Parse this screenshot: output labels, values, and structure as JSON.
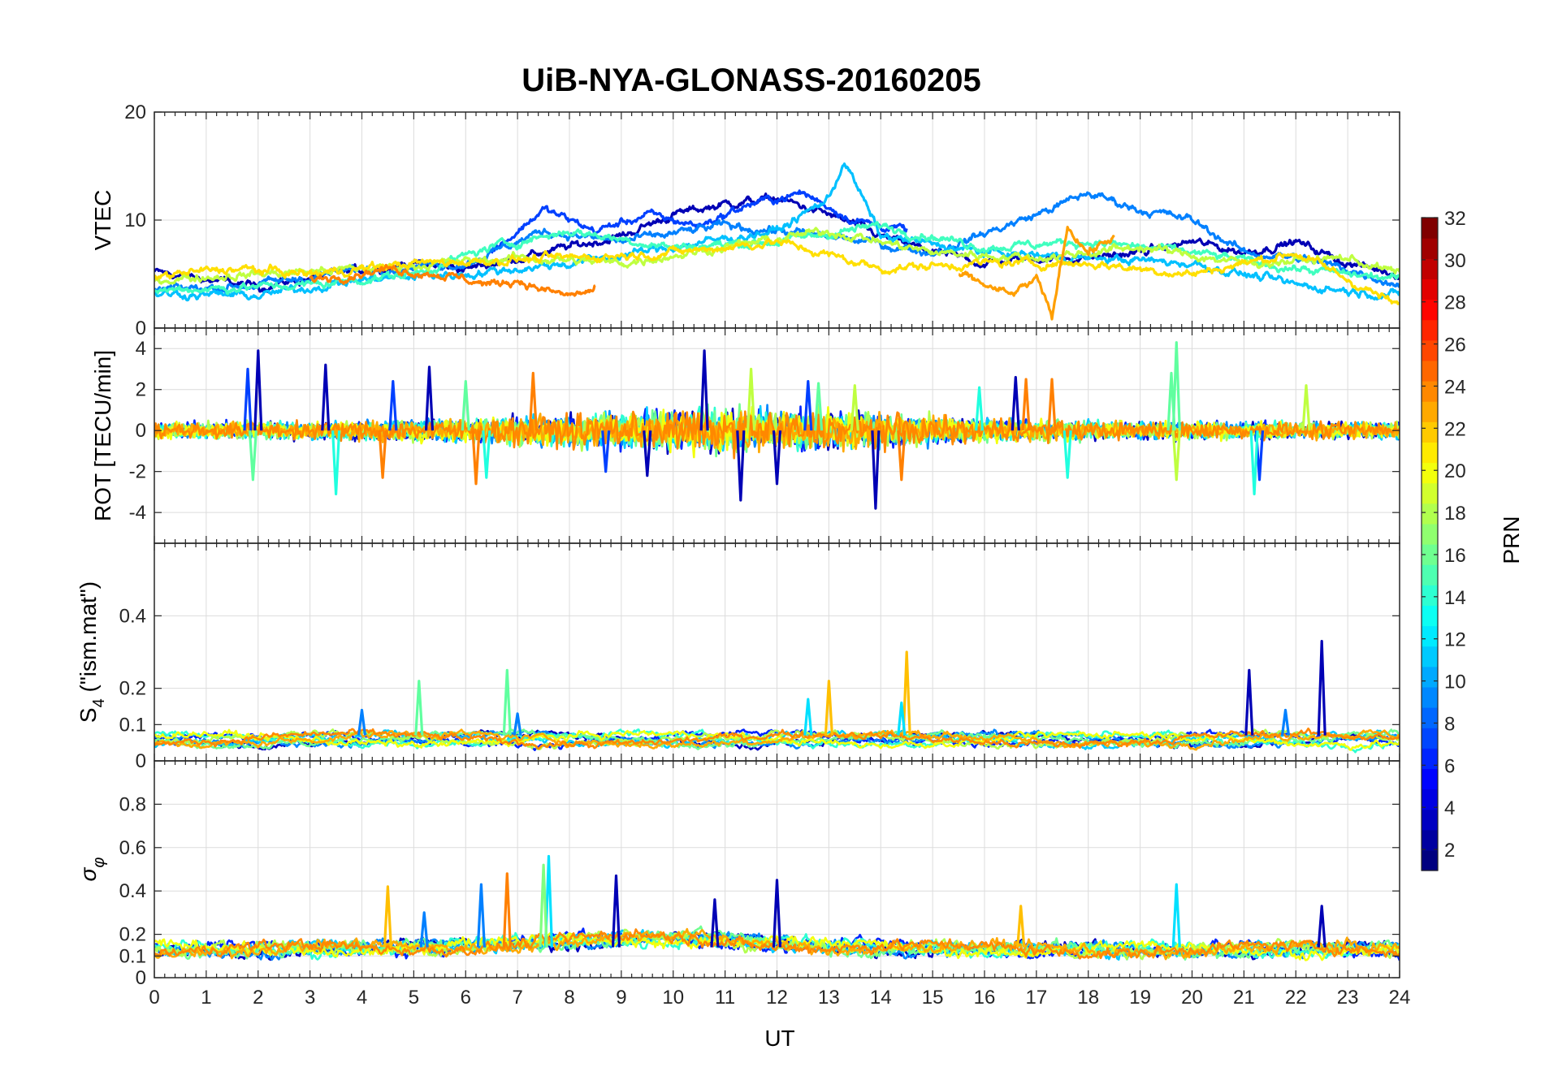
{
  "chart_data": {
    "type": "line",
    "title": "UiB-NYA-GLONASS-20160205",
    "xlabel": "UT",
    "xlim": [
      0,
      24
    ],
    "xticks": [
      "0",
      "1",
      "2",
      "3",
      "4",
      "5",
      "6",
      "7",
      "8",
      "9",
      "10",
      "11",
      "12",
      "13",
      "14",
      "15",
      "16",
      "17",
      "18",
      "19",
      "20",
      "21",
      "22",
      "23",
      "24"
    ],
    "colorbar": {
      "label": "PRN",
      "range": [
        1,
        32
      ],
      "ticks": [
        "2",
        "4",
        "6",
        "8",
        "10",
        "12",
        "14",
        "16",
        "18",
        "20",
        "22",
        "24",
        "26",
        "28",
        "30",
        "32"
      ],
      "colormap": "jet",
      "levels": 32
    },
    "panels": [
      {
        "name": "vtec",
        "ylabel": "VTEC",
        "ylim": [
          0,
          20
        ],
        "yticks": [
          "0",
          "10",
          "20"
        ],
        "series": [
          {
            "prn": 2,
            "color": "#0000B5",
            "x": [
              0,
              1,
              2,
              3,
              4,
              5,
              6,
              7,
              8,
              9,
              10,
              11,
              12,
              13,
              14,
              15,
              16,
              17,
              18,
              19,
              20,
              21,
              22,
              23,
              24
            ],
            "y": [
              5.2,
              4.5,
              3.8,
              4.6,
              5.4,
              6.0,
              5.5,
              6.5,
              7.5,
              8.5,
              10.5,
              11.5,
              12.0,
              10.5,
              8.5,
              7.0,
              6.0,
              6.5,
              6.5,
              7.0,
              8.0,
              7.0,
              8.0,
              6.0,
              5.0
            ]
          },
          {
            "prn": 6,
            "color": "#0040FF",
            "x": [
              6.5,
              7.5,
              8.5,
              9.5,
              10.5,
              11.5,
              12.5,
              13.5,
              14.5
            ],
            "y": [
              7.0,
              11.0,
              9.0,
              10.5,
              9.5,
              11.5,
              12.5,
              10.0,
              9.0
            ]
          },
          {
            "prn": 9,
            "color": "#0080FF",
            "x": [
              0,
              2,
              4,
              6,
              7.5,
              9,
              11,
              13,
              15,
              17,
              18,
              19,
              20,
              21,
              22,
              23,
              24
            ],
            "y": [
              3.5,
              4.0,
              5.5,
              6.0,
              9.0,
              8.0,
              9.5,
              8.5,
              7.0,
              10.5,
              12.5,
              11.0,
              10.0,
              7.0,
              6.5,
              5.5,
              4.0
            ]
          },
          {
            "prn": 12,
            "color": "#00C0FF",
            "x": [
              0,
              2,
              4,
              6,
              8,
              10,
              12,
              13,
              13.3,
              14,
              16,
              18,
              20,
              22,
              24
            ],
            "y": [
              3.2,
              3.0,
              4.5,
              5.0,
              6.0,
              7.5,
              9.0,
              12.0,
              15.5,
              8.5,
              7.0,
              6.5,
              6.0,
              4.0,
              3.0
            ]
          },
          {
            "prn": 15,
            "color": "#40FFBF",
            "x": [
              0,
              3,
              5,
              6.5,
              8,
              10,
              12,
              14,
              16,
              18,
              20,
              22,
              24
            ],
            "y": [
              3.5,
              4.0,
              5.0,
              7.5,
              9.0,
              7.5,
              8.0,
              9.5,
              7.5,
              8.0,
              7.0,
              5.5,
              4.5
            ]
          },
          {
            "prn": 18,
            "color": "#BFFF40",
            "x": [
              0,
              2,
              4,
              7,
              9,
              11,
              13,
              15,
              17,
              19,
              21,
              23,
              24
            ],
            "y": [
              4.5,
              5.0,
              5.5,
              6.5,
              6.0,
              7.5,
              9.0,
              7.0,
              6.5,
              7.5,
              6.0,
              6.5,
              5.0
            ]
          },
          {
            "prn": 21,
            "color": "#FFDF00",
            "x": [
              0,
              1.5,
              3,
              5,
              8,
              10,
              12,
              14,
              16,
              18,
              20,
              22,
              24
            ],
            "y": [
              4.8,
              5.5,
              5.0,
              6.0,
              6.5,
              7.0,
              8.0,
              5.5,
              6.0,
              6.0,
              5.0,
              7.0,
              2.0
            ]
          },
          {
            "prn": 24,
            "color": "#FF8000",
            "x": [
              3,
              4.5,
              5.5,
              6,
              6.5,
              7,
              7.5,
              8,
              8.5
            ],
            "y": [
              4.5,
              5.5,
              5.0,
              4.5,
              4.0,
              4.5,
              3.5,
              3.0,
              3.5
            ]
          },
          {
            "prn": 23,
            "color": "#FF9F00",
            "x": [
              15.5,
              16,
              16.5,
              17,
              17.3,
              17.6,
              18,
              18.5
            ],
            "y": [
              5.0,
              4.0,
              3.0,
              4.5,
              1.0,
              9.5,
              7.0,
              8.5
            ]
          }
        ]
      },
      {
        "name": "rot",
        "ylabel": "ROT [TECU/min]",
        "ylim": [
          -5.5,
          5
        ],
        "yticks": [
          "-4",
          "-2",
          "0",
          "2",
          "4"
        ],
        "spikes": [
          {
            "prn": 2,
            "color": "#0000B5",
            "x": [
              2.0,
              3.3,
              5.3,
              9.5,
              10.6,
              11.3,
              12.0,
              13.9,
              16.6
            ],
            "y": [
              3.9,
              3.2,
              3.1,
              -2.2,
              3.9,
              -3.4,
              -2.6,
              -3.8,
              2.6
            ]
          },
          {
            "prn": 6,
            "color": "#0040FF",
            "x": [
              1.8,
              4.6,
              8.7,
              12.6,
              21.3
            ],
            "y": [
              3.0,
              2.4,
              -2.0,
              2.4,
              -2.4
            ]
          },
          {
            "prn": 13,
            "color": "#20FFDF",
            "x": [
              3.5,
              6.4,
              15.9,
              17.6,
              21.2
            ],
            "y": [
              -3.1,
              -2.3,
              2.1,
              -2.3,
              -3.1
            ]
          },
          {
            "prn": 16,
            "color": "#60FF9F",
            "x": [
              1.9,
              6.0,
              12.8,
              19.6,
              19.7
            ],
            "y": [
              -2.4,
              2.4,
              2.3,
              2.8,
              4.3
            ]
          },
          {
            "prn": 18,
            "color": "#BFFF40",
            "x": [
              11.5,
              13.5,
              19.7,
              22.2
            ],
            "y": [
              3.0,
              2.2,
              -2.4,
              2.2
            ]
          },
          {
            "prn": 24,
            "color": "#FF8000",
            "x": [
              4.4,
              6.2,
              7.3,
              14.4,
              16.8,
              17.3
            ],
            "y": [
              -2.3,
              -2.6,
              2.8,
              -2.4,
              2.5,
              2.5
            ]
          }
        ]
      },
      {
        "name": "s4",
        "ylabel_main": "S",
        "ylabel_sub": "4",
        "ylabel_rest": " (\"ism.mat\")",
        "ylim": [
          0,
          0.6
        ],
        "yticks": [
          "0",
          "0.1",
          "0.2",
          "0.4"
        ],
        "spikes": [
          {
            "prn": 2,
            "color": "#0000B5",
            "x": [
              21.1,
              22.5
            ],
            "y": [
              0.25,
              0.33
            ]
          },
          {
            "prn": 22,
            "color": "#FFBF00",
            "x": [
              13.0,
              14.5
            ],
            "y": [
              0.22,
              0.3
            ]
          },
          {
            "prn": 16,
            "color": "#60FF9F",
            "x": [
              5.1,
              6.8
            ],
            "y": [
              0.22,
              0.25
            ]
          },
          {
            "prn": 11,
            "color": "#00E0FF",
            "x": [
              12.6,
              14.4
            ],
            "y": [
              0.17,
              0.16
            ]
          },
          {
            "prn": 8,
            "color": "#0080FF",
            "x": [
              4.0,
              7.0,
              21.8
            ],
            "y": [
              0.14,
              0.13,
              0.14
            ]
          }
        ]
      },
      {
        "name": "sigma_phi",
        "ylabel_main": "σ",
        "ylabel_sub": "φ",
        "ylim": [
          0,
          1
        ],
        "yticks": [
          "0",
          "0.1",
          "0.2",
          "0.4",
          "0.6",
          "0.8"
        ],
        "spikes": [
          {
            "prn": 2,
            "color": "#0000B5",
            "x": [
              8.9,
              12.0,
              10.8,
              22.5
            ],
            "y": [
              0.47,
              0.45,
              0.36,
              0.33
            ]
          },
          {
            "prn": 9,
            "color": "#0080FF",
            "x": [
              6.3,
              5.2
            ],
            "y": [
              0.43,
              0.3
            ]
          },
          {
            "prn": 11,
            "color": "#00E0FF",
            "x": [
              7.6,
              19.7
            ],
            "y": [
              0.56,
              0.43
            ]
          },
          {
            "prn": 17,
            "color": "#80FF80",
            "x": [
              7.5
            ],
            "y": [
              0.52
            ]
          },
          {
            "prn": 22,
            "color": "#FFBF00",
            "x": [
              4.5,
              16.7
            ],
            "y": [
              0.42,
              0.33
            ]
          },
          {
            "prn": 24,
            "color": "#FF8000",
            "x": [
              6.8
            ],
            "y": [
              0.48
            ]
          }
        ]
      }
    ]
  }
}
